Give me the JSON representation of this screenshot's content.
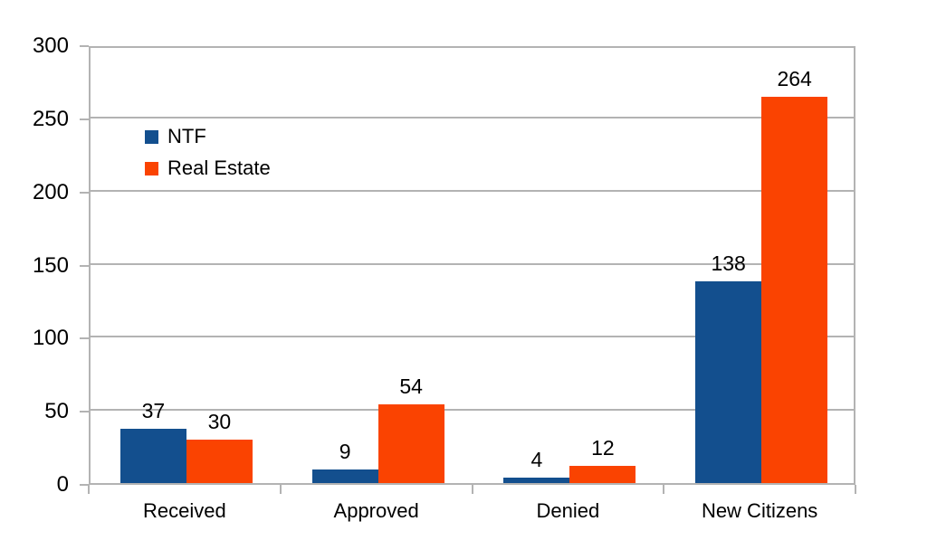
{
  "chart_data": {
    "type": "bar",
    "title": "",
    "xlabel": "",
    "ylabel": "",
    "categories": [
      "Received",
      "Approved",
      "Denied",
      "New Citizens"
    ],
    "series": [
      {
        "name": "NTF",
        "color": "#134f8e",
        "values": [
          37,
          9,
          4,
          138
        ]
      },
      {
        "name": "Real Estate",
        "color": "#fa4301",
        "values": [
          30,
          54,
          12,
          264
        ]
      }
    ],
    "ylim": [
      0,
      300
    ],
    "yticks": [
      0,
      50,
      100,
      150,
      200,
      250,
      300
    ],
    "grid": true,
    "legend_position": "inside-top-left",
    "bar_labels_shown": true
  },
  "colors": {
    "grid": "#b3b3b3",
    "background": "#ffffff",
    "text": "#000000"
  }
}
